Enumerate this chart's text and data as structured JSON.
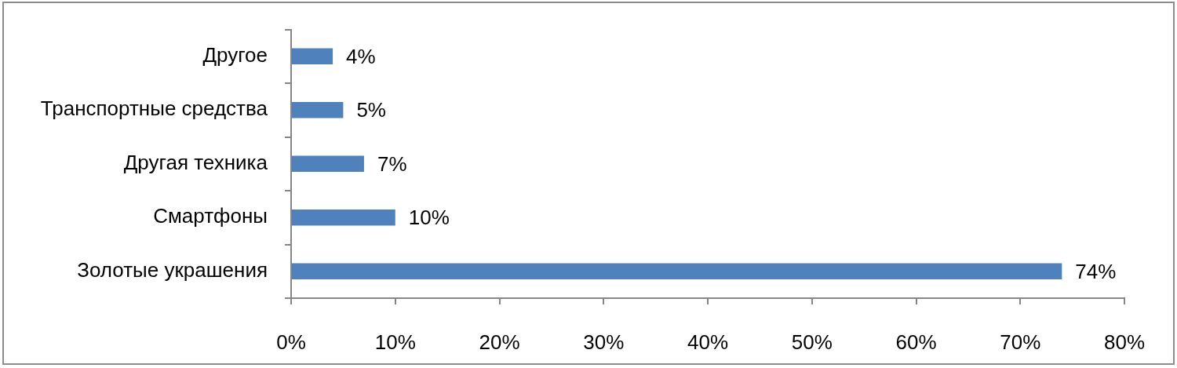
{
  "chart_data": {
    "type": "bar",
    "orientation": "horizontal",
    "categories": [
      "Другое",
      "Транспортные средства",
      "Другая техника",
      "Смартфоны",
      "Золотые украшения"
    ],
    "values": [
      4,
      5,
      7,
      10,
      74
    ],
    "color": "#4f81bd",
    "value_labels": [
      "4%",
      "5%",
      "7%",
      "10%",
      "74%"
    ],
    "xlim": [
      0,
      80
    ],
    "xticks": [
      {
        "value": 0,
        "label": "0%"
      },
      {
        "value": 10,
        "label": "10%"
      },
      {
        "value": 20,
        "label": "20%"
      },
      {
        "value": 30,
        "label": "30%"
      },
      {
        "value": 40,
        "label": "40%"
      },
      {
        "value": 50,
        "label": "50%"
      },
      {
        "value": 60,
        "label": "60%"
      },
      {
        "value": 70,
        "label": "70%"
      },
      {
        "value": 80,
        "label": "80%"
      }
    ]
  }
}
